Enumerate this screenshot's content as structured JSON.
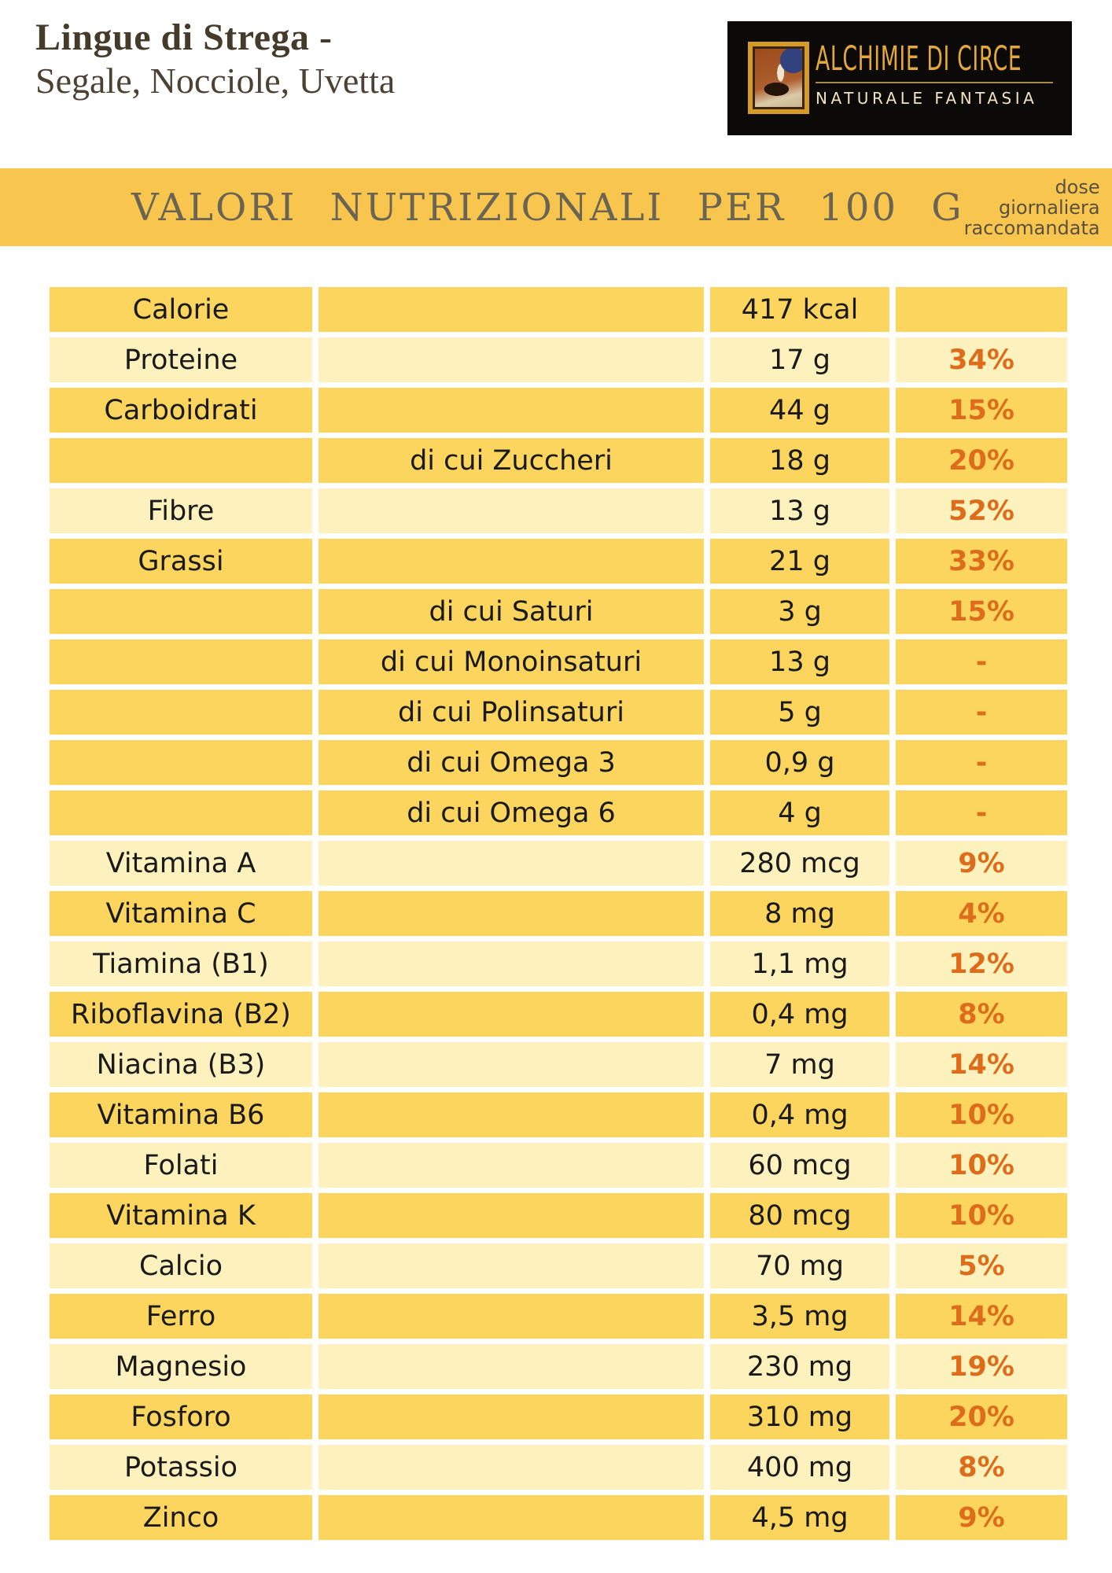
{
  "header": {
    "title_line1": "Lingue di Strega -",
    "title_line2": "Segale, Nocciole, Uvetta",
    "logo": {
      "brand": "ALCHIMIE DI CIRCE",
      "tagline": "NATURALE FANTASIA"
    }
  },
  "banner": {
    "title": "VALORI NUTRIZIONALI PER 100 G",
    "note_line1": "dose giornaliera",
    "note_line2": "raccomandata"
  },
  "colors": {
    "banner_bg": "#F8C64E",
    "row_dark": "#FBD55E",
    "row_light": "#FDF1BD",
    "percent_text": "#DD6D1A",
    "value_text": "#1A1A1A",
    "logo_gold": "#E2A83D",
    "logo_cream": "#EFE3C2",
    "logo_bg": "#0C0A08"
  },
  "table": {
    "rows": [
      {
        "name": "Calorie",
        "sub": "",
        "value": "417 kcal",
        "pct": "",
        "tone": "dark"
      },
      {
        "name": "Proteine",
        "sub": "",
        "value": "17 g",
        "pct": "34%",
        "tone": "light"
      },
      {
        "name": "Carboidrati",
        "sub": "",
        "value": "44 g",
        "pct": "15%",
        "tone": "dark"
      },
      {
        "name": "",
        "sub": "di cui Zuccheri",
        "value": "18 g",
        "pct": "20%",
        "tone": "dark"
      },
      {
        "name": "Fibre",
        "sub": "",
        "value": "13 g",
        "pct": "52%",
        "tone": "light"
      },
      {
        "name": "Grassi",
        "sub": "",
        "value": "21 g",
        "pct": "33%",
        "tone": "dark"
      },
      {
        "name": "",
        "sub": "di cui Saturi",
        "value": "3 g",
        "pct": "15%",
        "tone": "dark"
      },
      {
        "name": "",
        "sub": "di cui Monoinsaturi",
        "value": "13 g",
        "pct": "-",
        "tone": "dark"
      },
      {
        "name": "",
        "sub": "di cui Polinsaturi",
        "value": "5 g",
        "pct": "-",
        "tone": "dark"
      },
      {
        "name": "",
        "sub": "di cui Omega 3",
        "value": "0,9 g",
        "pct": "-",
        "tone": "dark"
      },
      {
        "name": "",
        "sub": "di cui Omega 6",
        "value": "4 g",
        "pct": "-",
        "tone": "dark"
      },
      {
        "name": "Vitamina A",
        "sub": "",
        "value": "280 mcg",
        "pct": "9%",
        "tone": "light"
      },
      {
        "name": "Vitamina C",
        "sub": "",
        "value": "8 mg",
        "pct": "4%",
        "tone": "dark"
      },
      {
        "name": "Tiamina (B1)",
        "sub": "",
        "value": "1,1 mg",
        "pct": "12%",
        "tone": "light"
      },
      {
        "name": "Riboflavina (B2)",
        "sub": "",
        "value": "0,4 mg",
        "pct": "8%",
        "tone": "dark"
      },
      {
        "name": "Niacina (B3)",
        "sub": "",
        "value": "7 mg",
        "pct": "14%",
        "tone": "light"
      },
      {
        "name": "Vitamina B6",
        "sub": "",
        "value": "0,4 mg",
        "pct": "10%",
        "tone": "dark"
      },
      {
        "name": "Folati",
        "sub": "",
        "value": "60 mcg",
        "pct": "10%",
        "tone": "light"
      },
      {
        "name": "Vitamina K",
        "sub": "",
        "value": "80 mcg",
        "pct": "10%",
        "tone": "dark"
      },
      {
        "name": "Calcio",
        "sub": "",
        "value": "70 mg",
        "pct": "5%",
        "tone": "light"
      },
      {
        "name": "Ferro",
        "sub": "",
        "value": "3,5 mg",
        "pct": "14%",
        "tone": "dark"
      },
      {
        "name": "Magnesio",
        "sub": "",
        "value": "230 mg",
        "pct": "19%",
        "tone": "light"
      },
      {
        "name": "Fosforo",
        "sub": "",
        "value": "310 mg",
        "pct": "20%",
        "tone": "dark"
      },
      {
        "name": "Potassio",
        "sub": "",
        "value": "400 mg",
        "pct": "8%",
        "tone": "light"
      },
      {
        "name": "Zinco",
        "sub": "",
        "value": "4,5 mg",
        "pct": "9%",
        "tone": "dark"
      }
    ]
  }
}
